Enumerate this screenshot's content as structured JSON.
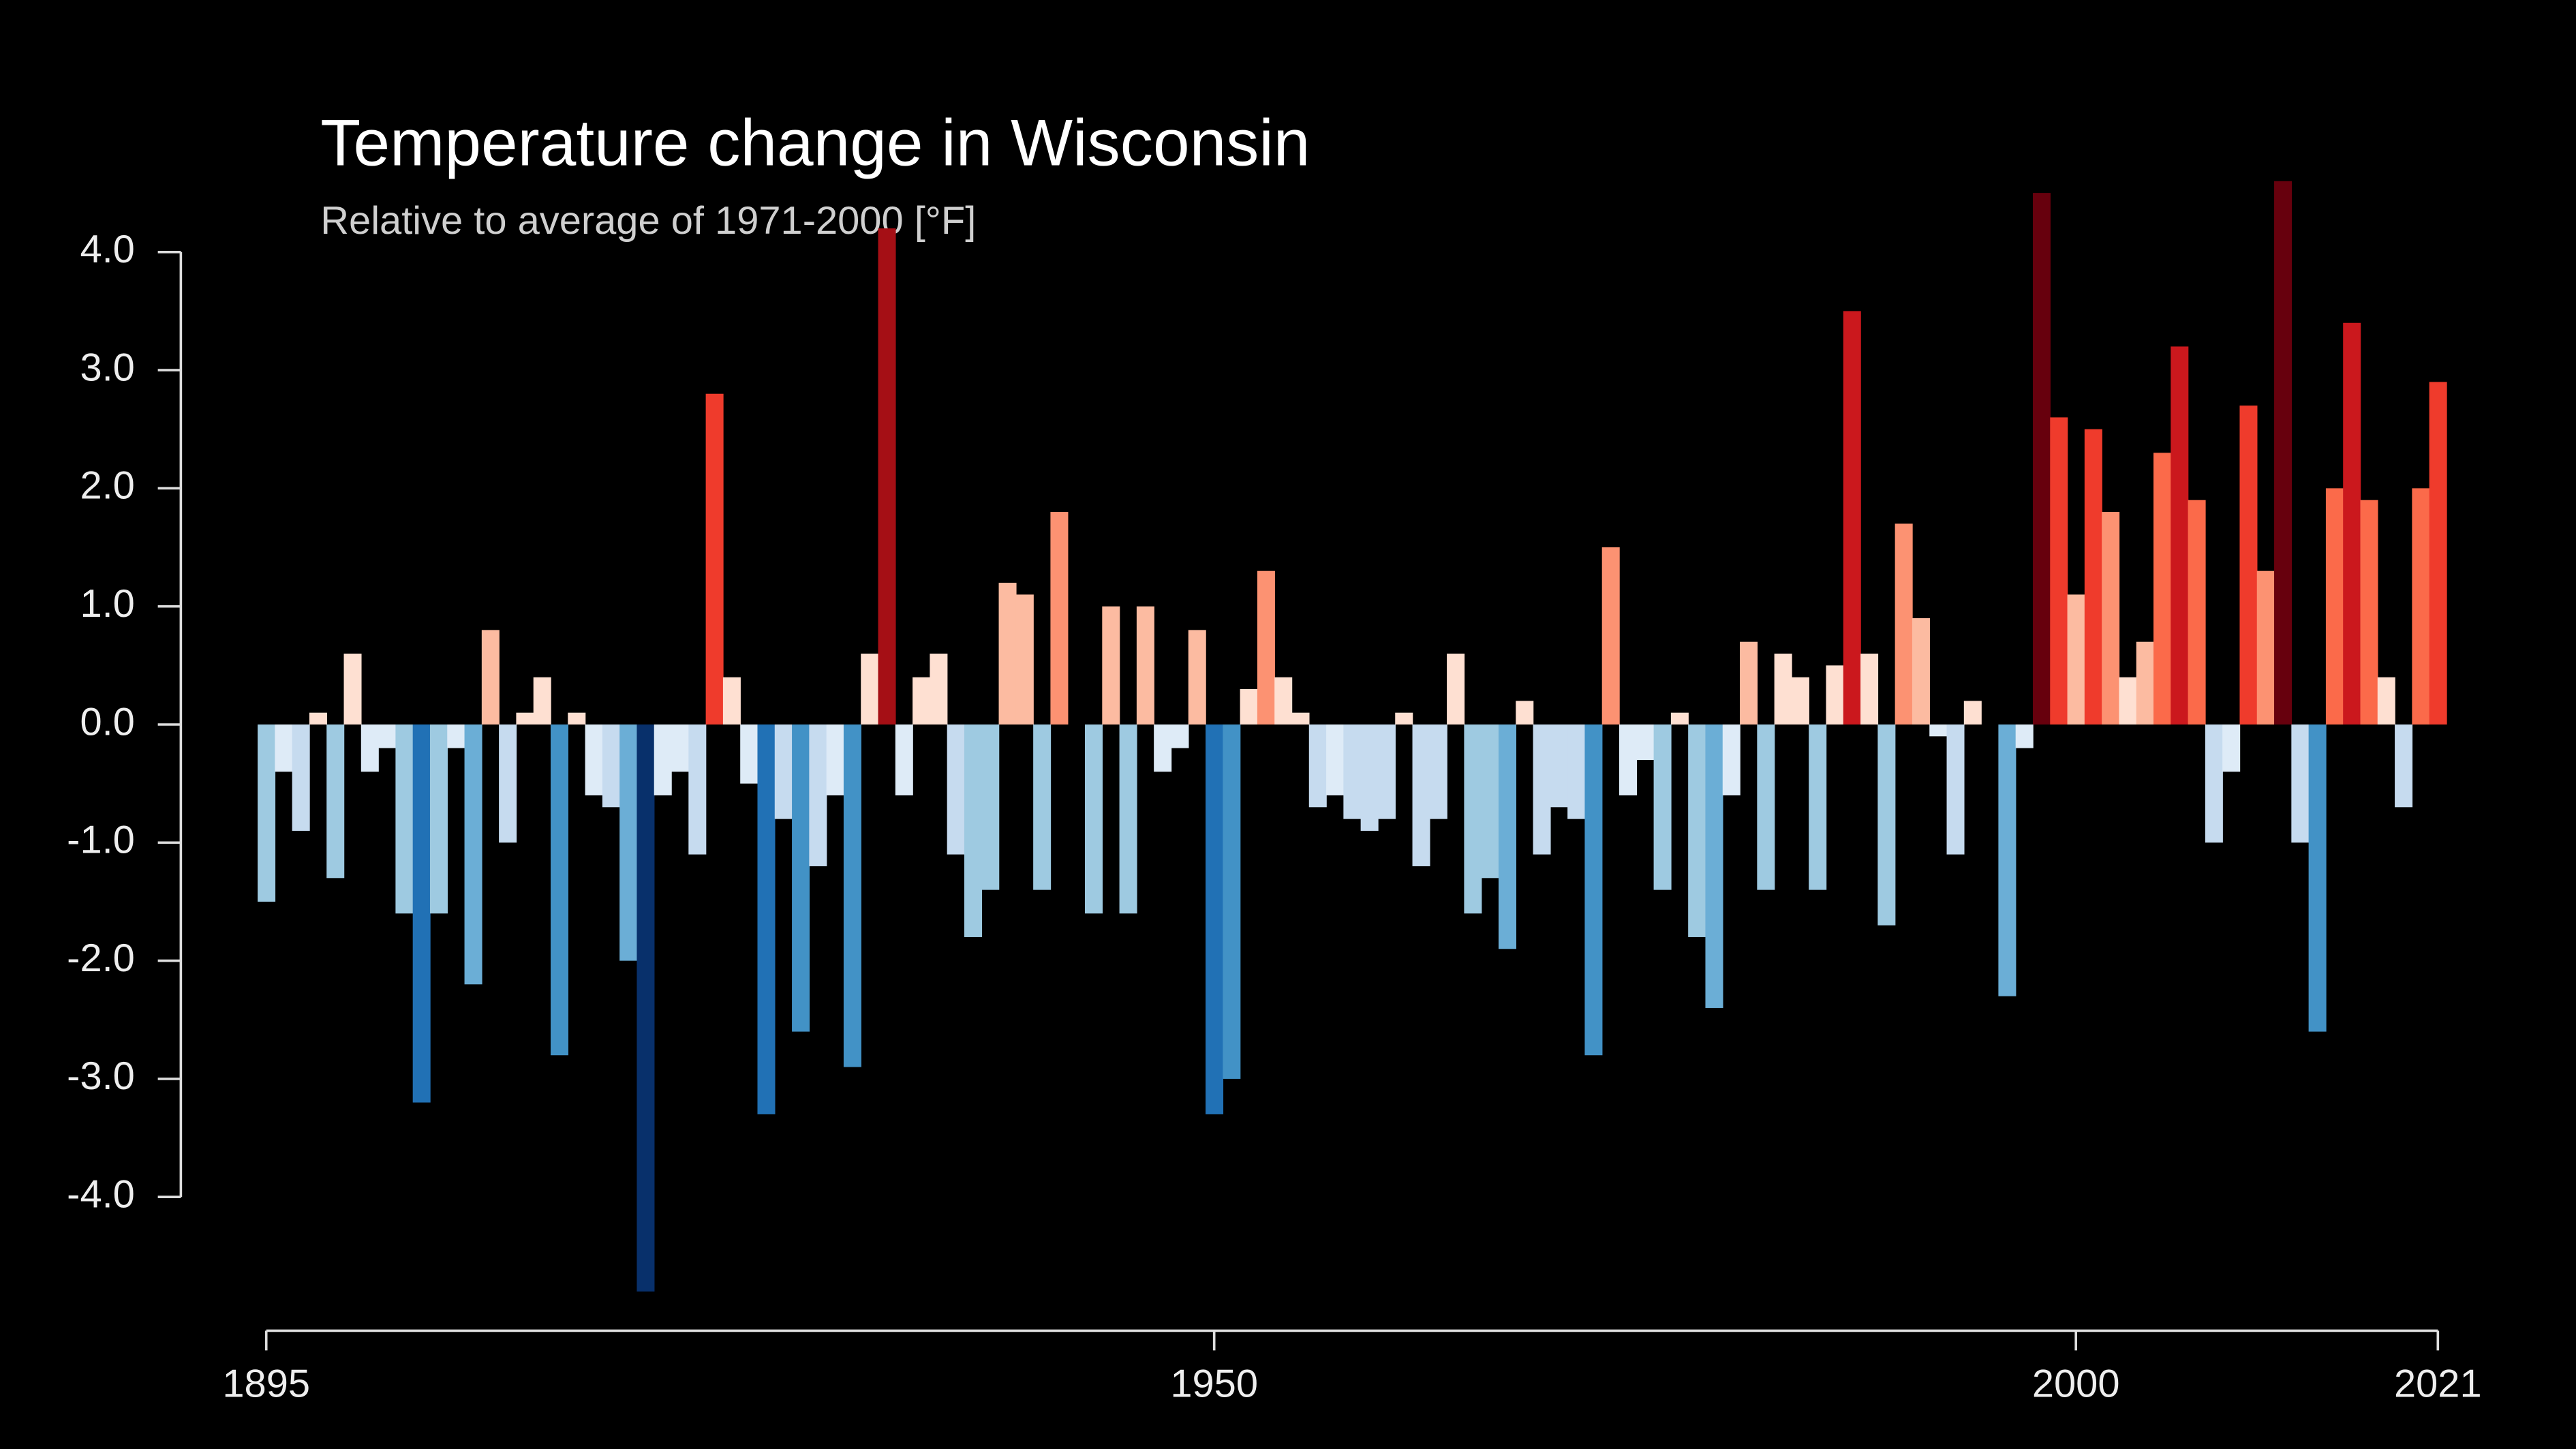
{
  "chart_data": {
    "type": "bar",
    "title": "Temperature change in Wisconsin",
    "subtitle": "Relative to average of 1971-2000  [°F]",
    "x": [
      1895,
      1896,
      1897,
      1898,
      1899,
      1900,
      1901,
      1902,
      1903,
      1904,
      1905,
      1906,
      1907,
      1908,
      1909,
      1910,
      1911,
      1912,
      1913,
      1914,
      1915,
      1916,
      1917,
      1918,
      1919,
      1920,
      1921,
      1922,
      1923,
      1924,
      1925,
      1926,
      1927,
      1928,
      1929,
      1930,
      1931,
      1932,
      1933,
      1934,
      1935,
      1936,
      1937,
      1938,
      1939,
      1940,
      1941,
      1942,
      1943,
      1944,
      1945,
      1946,
      1947,
      1948,
      1949,
      1950,
      1951,
      1952,
      1953,
      1954,
      1955,
      1956,
      1957,
      1958,
      1959,
      1960,
      1961,
      1962,
      1963,
      1964,
      1965,
      1966,
      1967,
      1968,
      1969,
      1970,
      1971,
      1972,
      1973,
      1974,
      1975,
      1976,
      1977,
      1978,
      1979,
      1980,
      1981,
      1982,
      1983,
      1984,
      1985,
      1986,
      1987,
      1988,
      1989,
      1990,
      1991,
      1992,
      1993,
      1994,
      1995,
      1996,
      1997,
      1998,
      1999,
      2000,
      2001,
      2002,
      2003,
      2004,
      2005,
      2006,
      2007,
      2008,
      2009,
      2010,
      2011,
      2012,
      2013,
      2014,
      2015,
      2016,
      2017,
      2018,
      2019,
      2020,
      2021
    ],
    "values": [
      -1.5,
      -0.4,
      -0.9,
      0.1,
      -1.3,
      0.6,
      -0.4,
      -0.2,
      -1.6,
      -3.2,
      -1.6,
      -0.2,
      -2.2,
      0.8,
      -1.0,
      0.1,
      0.4,
      -2.8,
      0.1,
      -0.6,
      -0.7,
      -2.0,
      -4.8,
      -0.6,
      -0.4,
      -1.1,
      2.8,
      0.4,
      -0.5,
      -3.3,
      -0.8,
      -2.6,
      -1.2,
      -0.6,
      -2.9,
      0.6,
      4.2,
      -0.6,
      0.4,
      0.6,
      -1.1,
      -1.8,
      -1.4,
      1.2,
      1.1,
      -1.4,
      1.8,
      0.0,
      -1.6,
      1.0,
      -1.6,
      1.0,
      -0.4,
      -0.2,
      0.8,
      -3.3,
      -3.0,
      0.3,
      1.3,
      0.4,
      0.1,
      -0.7,
      -0.6,
      -0.8,
      -0.9,
      -0.8,
      0.1,
      -1.2,
      -0.8,
      0.6,
      -1.6,
      -1.3,
      -1.9,
      0.2,
      -1.1,
      -0.7,
      -0.8,
      -2.8,
      1.5,
      -0.6,
      -0.3,
      -1.4,
      0.1,
      -1.8,
      -2.4,
      -0.6,
      0.7,
      -1.4,
      0.6,
      0.4,
      -1.4,
      0.5,
      3.5,
      0.6,
      -1.7,
      1.7,
      0.9,
      -0.1,
      -1.1,
      0.2,
      0.0,
      -2.3,
      -0.2,
      4.5,
      2.6,
      1.1,
      2.5,
      1.8,
      0.4,
      0.7,
      2.3,
      3.2,
      1.9,
      -1.0,
      -0.4,
      2.7,
      1.3,
      4.6,
      -1.0,
      -2.6,
      2.0,
      3.4,
      1.9,
      0.4,
      -0.7,
      2.0,
      2.9
    ],
    "palette": {
      "negative": [
        "#deebf7",
        "#c6dbef",
        "#9ecae1",
        "#6baed6",
        "#4292c6",
        "#2171b5",
        "#08519c",
        "#08306b"
      ],
      "positive": [
        "#fee0d2",
        "#fcbba1",
        "#fc9272",
        "#fb6a4a",
        "#ef3b2c",
        "#cb181d",
        "#a50f15",
        "#67000d"
      ]
    },
    "xlim": [
      1895,
      2021
    ],
    "xticks": [
      1895,
      1950,
      2000,
      2021
    ],
    "ylim": [
      -5,
      4.7
    ],
    "yticks": [
      {
        "value": -4,
        "label": "-4.0"
      },
      {
        "value": -3,
        "label": "-3.0"
      },
      {
        "value": -2,
        "label": "-2.0"
      },
      {
        "value": -1,
        "label": "-1.0"
      },
      {
        "value": 0,
        "label": "0.0"
      },
      {
        "value": 1,
        "label": "1.0"
      },
      {
        "value": 2,
        "label": "2.0"
      },
      {
        "value": 3,
        "label": "3.0"
      },
      {
        "value": 4,
        "label": "4.0"
      }
    ],
    "grid": false
  }
}
